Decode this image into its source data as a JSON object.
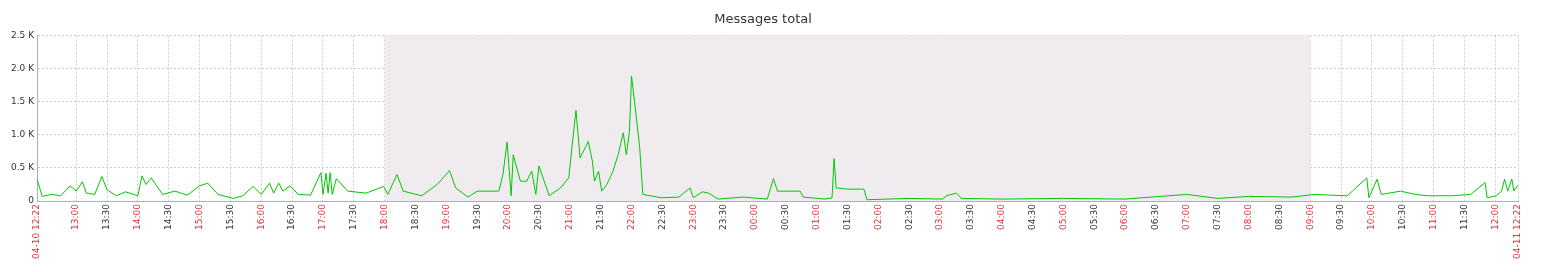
{
  "chart_data": {
    "type": "line",
    "title": "Messages total",
    "x": [
      "--04-10T12:22",
      "--04-10T12:27",
      "--04-10T12:36",
      "--04-10T12:45",
      "--04-10T12:54",
      "--04-10T13:00",
      "--04-10T13:06",
      "--04-10T13:10",
      "--04-10T13:18",
      "--04-10T13:25",
      "--04-10T13:30",
      "--04-10T13:39",
      "--04-10T13:48",
      "--04-10T14:00",
      "--04-10T14:04",
      "--04-10T14:08",
      "--04-10T14:13",
      "--04-10T14:24",
      "--04-10T14:36",
      "--04-10T14:48",
      "--04-10T15:00",
      "--04-10T15:08",
      "--04-10T15:18",
      "--04-10T15:33",
      "--04-10T15:42",
      "--04-10T15:52",
      "--04-10T16:00",
      "--04-10T16:08",
      "--04-10T16:12",
      "--04-10T16:17",
      "--04-10T16:21",
      "--04-10T16:28",
      "--04-10T16:36",
      "--04-10T16:48",
      "--04-10T16:58",
      "--04-10T17:00",
      "--04-10T17:03",
      "--04-10T17:05",
      "--04-10T17:07",
      "--04-10T17:09",
      "--04-10T17:13",
      "--04-10T17:24",
      "--04-10T17:42",
      "--04-10T17:59",
      "--04-10T18:03",
      "--04-10T18:12",
      "--04-10T18:18",
      "--04-10T18:36",
      "--04-10T18:51",
      "--04-10T19:03",
      "--04-10T19:09",
      "--04-10T19:21",
      "--04-10T19:30",
      "--04-10T19:51",
      "--04-10T19:55",
      "--04-10T19:59",
      "--04-10T20:03",
      "--04-10T20:05",
      "--04-10T20:12",
      "--04-10T20:18",
      "--04-10T20:23",
      "--04-10T20:27",
      "--04-10T20:30",
      "--04-10T20:40",
      "--04-10T20:51",
      "--04-10T20:59",
      "--04-10T21:02",
      "--04-10T21:06",
      "--04-10T21:10",
      "--04-10T21:18",
      "--04-10T21:22",
      "--04-10T21:24",
      "--04-10T21:28",
      "--04-10T21:31",
      "--04-10T21:36",
      "--04-10T21:42",
      "--04-10T21:47",
      "--04-10T21:52",
      "--04-10T21:55",
      "--04-10T21:58",
      "--04-10T22:00",
      "--04-10T22:03",
      "--04-10T22:08",
      "--04-10T22:11",
      "--04-10T22:29",
      "--04-10T22:46",
      "--04-10T22:57",
      "--04-10T23:00",
      "--04-10T23:09",
      "--04-10T23:15",
      "--04-10T23:24",
      "--04-10T23:48",
      "--04-11T00:12",
      "--04-11T00:18",
      "--04-11T00:22",
      "--04-11T00:44",
      "--04-11T00:47",
      "--04-11T01:08",
      "--04-11T01:15",
      "--04-11T01:17",
      "--04-11T01:19",
      "--04-11T01:30",
      "--04-11T01:46",
      "--04-11T01:49",
      "--04-11T02:30",
      "--04-11T03:03",
      "--04-11T03:06",
      "--04-11T03:16",
      "--04-11T03:21",
      "--04-11T04:00",
      "--04-11T05:00",
      "--04-11T06:00",
      "--04-11T06:42",
      "--04-11T07:00",
      "--04-11T07:30",
      "--04-11T08:00",
      "--04-11T08:42",
      "--04-11T09:04",
      "--04-11T09:18",
      "--04-11T09:36",
      "--04-11T09:55",
      "--04-11T09:57",
      "--04-11T10:05",
      "--04-11T10:09",
      "--04-11T10:28",
      "--04-11T10:42",
      "--04-11T10:54",
      "--04-11T11:18",
      "--04-11T11:36",
      "--04-11T11:50",
      "--04-11T11:52",
      "--04-11T12:01",
      "--04-11T12:06",
      "--04-11T12:09",
      "--04-11T12:12",
      "--04-11T12:16",
      "--04-11T12:18",
      "--04-11T12:22"
    ],
    "values": [
      330,
      70,
      100,
      80,
      230,
      150,
      290,
      120,
      100,
      370,
      170,
      80,
      140,
      80,
      380,
      250,
      350,
      100,
      150,
      90,
      230,
      270,
      100,
      40,
      80,
      220,
      100,
      270,
      120,
      270,
      150,
      230,
      100,
      90,
      430,
      100,
      420,
      120,
      430,
      100,
      340,
      150,
      120,
      220,
      100,
      400,
      150,
      80,
      250,
      460,
      200,
      60,
      150,
      150,
      400,
      890,
      80,
      700,
      300,
      300,
      450,
      100,
      530,
      80,
      200,
      350,
      800,
      1370,
      650,
      900,
      600,
      300,
      450,
      150,
      250,
      450,
      700,
      1030,
      700,
      1050,
      1890,
      1500,
      800,
      100,
      50,
      60,
      200,
      50,
      140,
      120,
      30,
      60,
      30,
      340,
      150,
      150,
      60,
      30,
      50,
      640,
      200,
      180,
      180,
      20,
      40,
      30,
      80,
      120,
      40,
      30,
      40,
      30,
      80,
      100,
      40,
      70,
      60,
      100,
      90,
      80,
      350,
      50,
      330,
      100,
      150,
      100,
      80,
      80,
      100,
      280,
      50,
      80,
      150,
      330,
      150,
      330,
      150,
      240
    ],
    "color": "#00c800",
    "xlim": [
      "--04-10T12:22",
      "--04-11T12:22"
    ],
    "xticks": [
      {
        "value": "--04-10T12:22",
        "label": "04-10 12:22"
      },
      {
        "value": "--04-10T13:00",
        "label": "13:00"
      },
      {
        "value": "--04-10T13:30",
        "label": "13:30"
      },
      {
        "value": "--04-10T14:00",
        "label": "14:00"
      },
      {
        "value": "--04-10T14:30",
        "label": "14:30"
      },
      {
        "value": "--04-10T15:00",
        "label": "15:00"
      },
      {
        "value": "--04-10T15:30",
        "label": "15:30"
      },
      {
        "value": "--04-10T16:00",
        "label": "16:00"
      },
      {
        "value": "--04-10T16:30",
        "label": "16:30"
      },
      {
        "value": "--04-10T17:00",
        "label": "17:00"
      },
      {
        "value": "--04-10T17:30",
        "label": "17:30"
      },
      {
        "value": "--04-10T18:00",
        "label": "18:00"
      },
      {
        "value": "--04-10T18:30",
        "label": "18:30"
      },
      {
        "value": "--04-10T19:00",
        "label": "19:00"
      },
      {
        "value": "--04-10T19:30",
        "label": "19:30"
      },
      {
        "value": "--04-10T20:00",
        "label": "20:00"
      },
      {
        "value": "--04-10T20:30",
        "label": "20:30"
      },
      {
        "value": "--04-10T21:00",
        "label": "21:00"
      },
      {
        "value": "--04-10T21:30",
        "label": "21:30"
      },
      {
        "value": "--04-10T22:00",
        "label": "22:00"
      },
      {
        "value": "--04-10T22:30",
        "label": "22:30"
      },
      {
        "value": "--04-10T23:00",
        "label": "23:00"
      },
      {
        "value": "--04-10T23:30",
        "label": "23:30"
      },
      {
        "value": "--04-11T00:00",
        "label": "00:00"
      },
      {
        "value": "--04-11T00:30",
        "label": "00:30"
      },
      {
        "value": "--04-11T01:00",
        "label": "01:00"
      },
      {
        "value": "--04-11T01:30",
        "label": "01:30"
      },
      {
        "value": "--04-11T02:00",
        "label": "02:00"
      },
      {
        "value": "--04-11T02:30",
        "label": "02:30"
      },
      {
        "value": "--04-11T03:00",
        "label": "03:00"
      },
      {
        "value": "--04-11T03:30",
        "label": "03:30"
      },
      {
        "value": "--04-11T04:00",
        "label": "04:00"
      },
      {
        "value": "--04-11T04:30",
        "label": "04:30"
      },
      {
        "value": "--04-11T05:00",
        "label": "05:00"
      },
      {
        "value": "--04-11T05:30",
        "label": "05:30"
      },
      {
        "value": "--04-11T06:00",
        "label": "06:00"
      },
      {
        "value": "--04-11T06:30",
        "label": "06:30"
      },
      {
        "value": "--04-11T07:00",
        "label": "07:00"
      },
      {
        "value": "--04-11T07:30",
        "label": "07:30"
      },
      {
        "value": "--04-11T08:00",
        "label": "08:00"
      },
      {
        "value": "--04-11T08:30",
        "label": "08:30"
      },
      {
        "value": "--04-11T09:00",
        "label": "09:00"
      },
      {
        "value": "--04-11T09:30",
        "label": "09:30"
      },
      {
        "value": "--04-11T10:00",
        "label": "10:00"
      },
      {
        "value": "--04-11T10:30",
        "label": "10:30"
      },
      {
        "value": "--04-11T11:00",
        "label": "11:00"
      },
      {
        "value": "--04-11T11:30",
        "label": "11:30"
      },
      {
        "value": "--04-11T12:00",
        "label": "12:00"
      },
      {
        "value": "--04-11T12:22",
        "label": "04-11 12:22"
      }
    ],
    "ylim": [
      0,
      2500
    ],
    "yticks": [
      0,
      {
        "value": 500,
        "label": "0.5 K"
      },
      {
        "value": 1000,
        "label": "1.0 K"
      },
      {
        "value": 1500,
        "label": "1.5 K"
      },
      {
        "value": 2000,
        "label": "2.0 K"
      },
      {
        "value": 2500,
        "label": "2.5 K"
      }
    ],
    "bands": [
      {
        "axis": "x",
        "from": "--04-10T18:00",
        "to": "--04-11T09:00",
        "color": "#efebef"
      }
    ],
    "grid": true,
    "marker": "none",
    "line_style": "solid"
  }
}
